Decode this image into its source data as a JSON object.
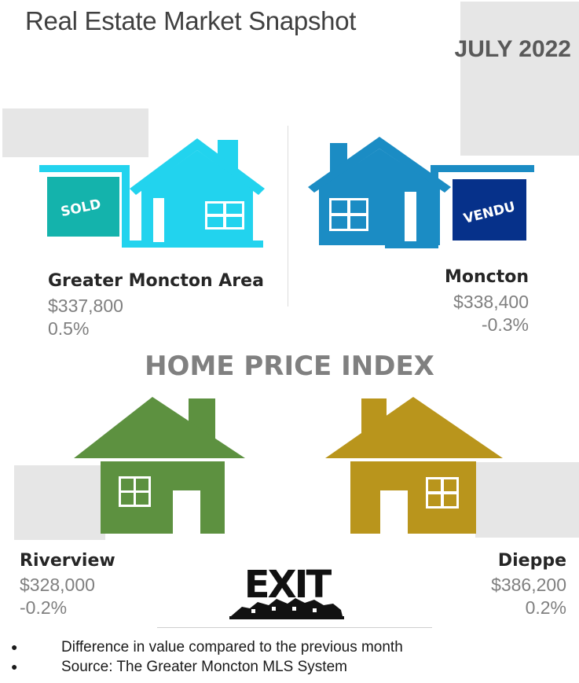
{
  "header": {
    "title": "Real Estate Market Snapshot",
    "month": "JULY 2022"
  },
  "section_title": "HOME PRICE INDEX",
  "signs": {
    "sold": "SOLD",
    "vendu": "VENDU"
  },
  "areas": [
    {
      "name": "Greater Moncton Area",
      "price": "$337,800",
      "change": "0.5%",
      "color": "#22d3ee"
    },
    {
      "name": "Moncton",
      "price": "$338,400",
      "change": "-0.3%",
      "color": "#1b8cc4"
    },
    {
      "name": "Riverview",
      "price": "$328,000",
      "change": "-0.2%",
      "color": "#5d9140"
    },
    {
      "name": "Dieppe",
      "price": "$386,200",
      "change": "0.2%",
      "color": "#b9951c"
    }
  ],
  "logo": {
    "text": "EXIT"
  },
  "notes": [
    "Difference in value compared to the previous month",
    "Source: The Greater Moncton MLS System"
  ],
  "colors": {
    "sold_sign": "#14b3ac",
    "vendu_sign": "#06318a",
    "title_text": "#404040",
    "value_text": "#7f7f7f"
  }
}
